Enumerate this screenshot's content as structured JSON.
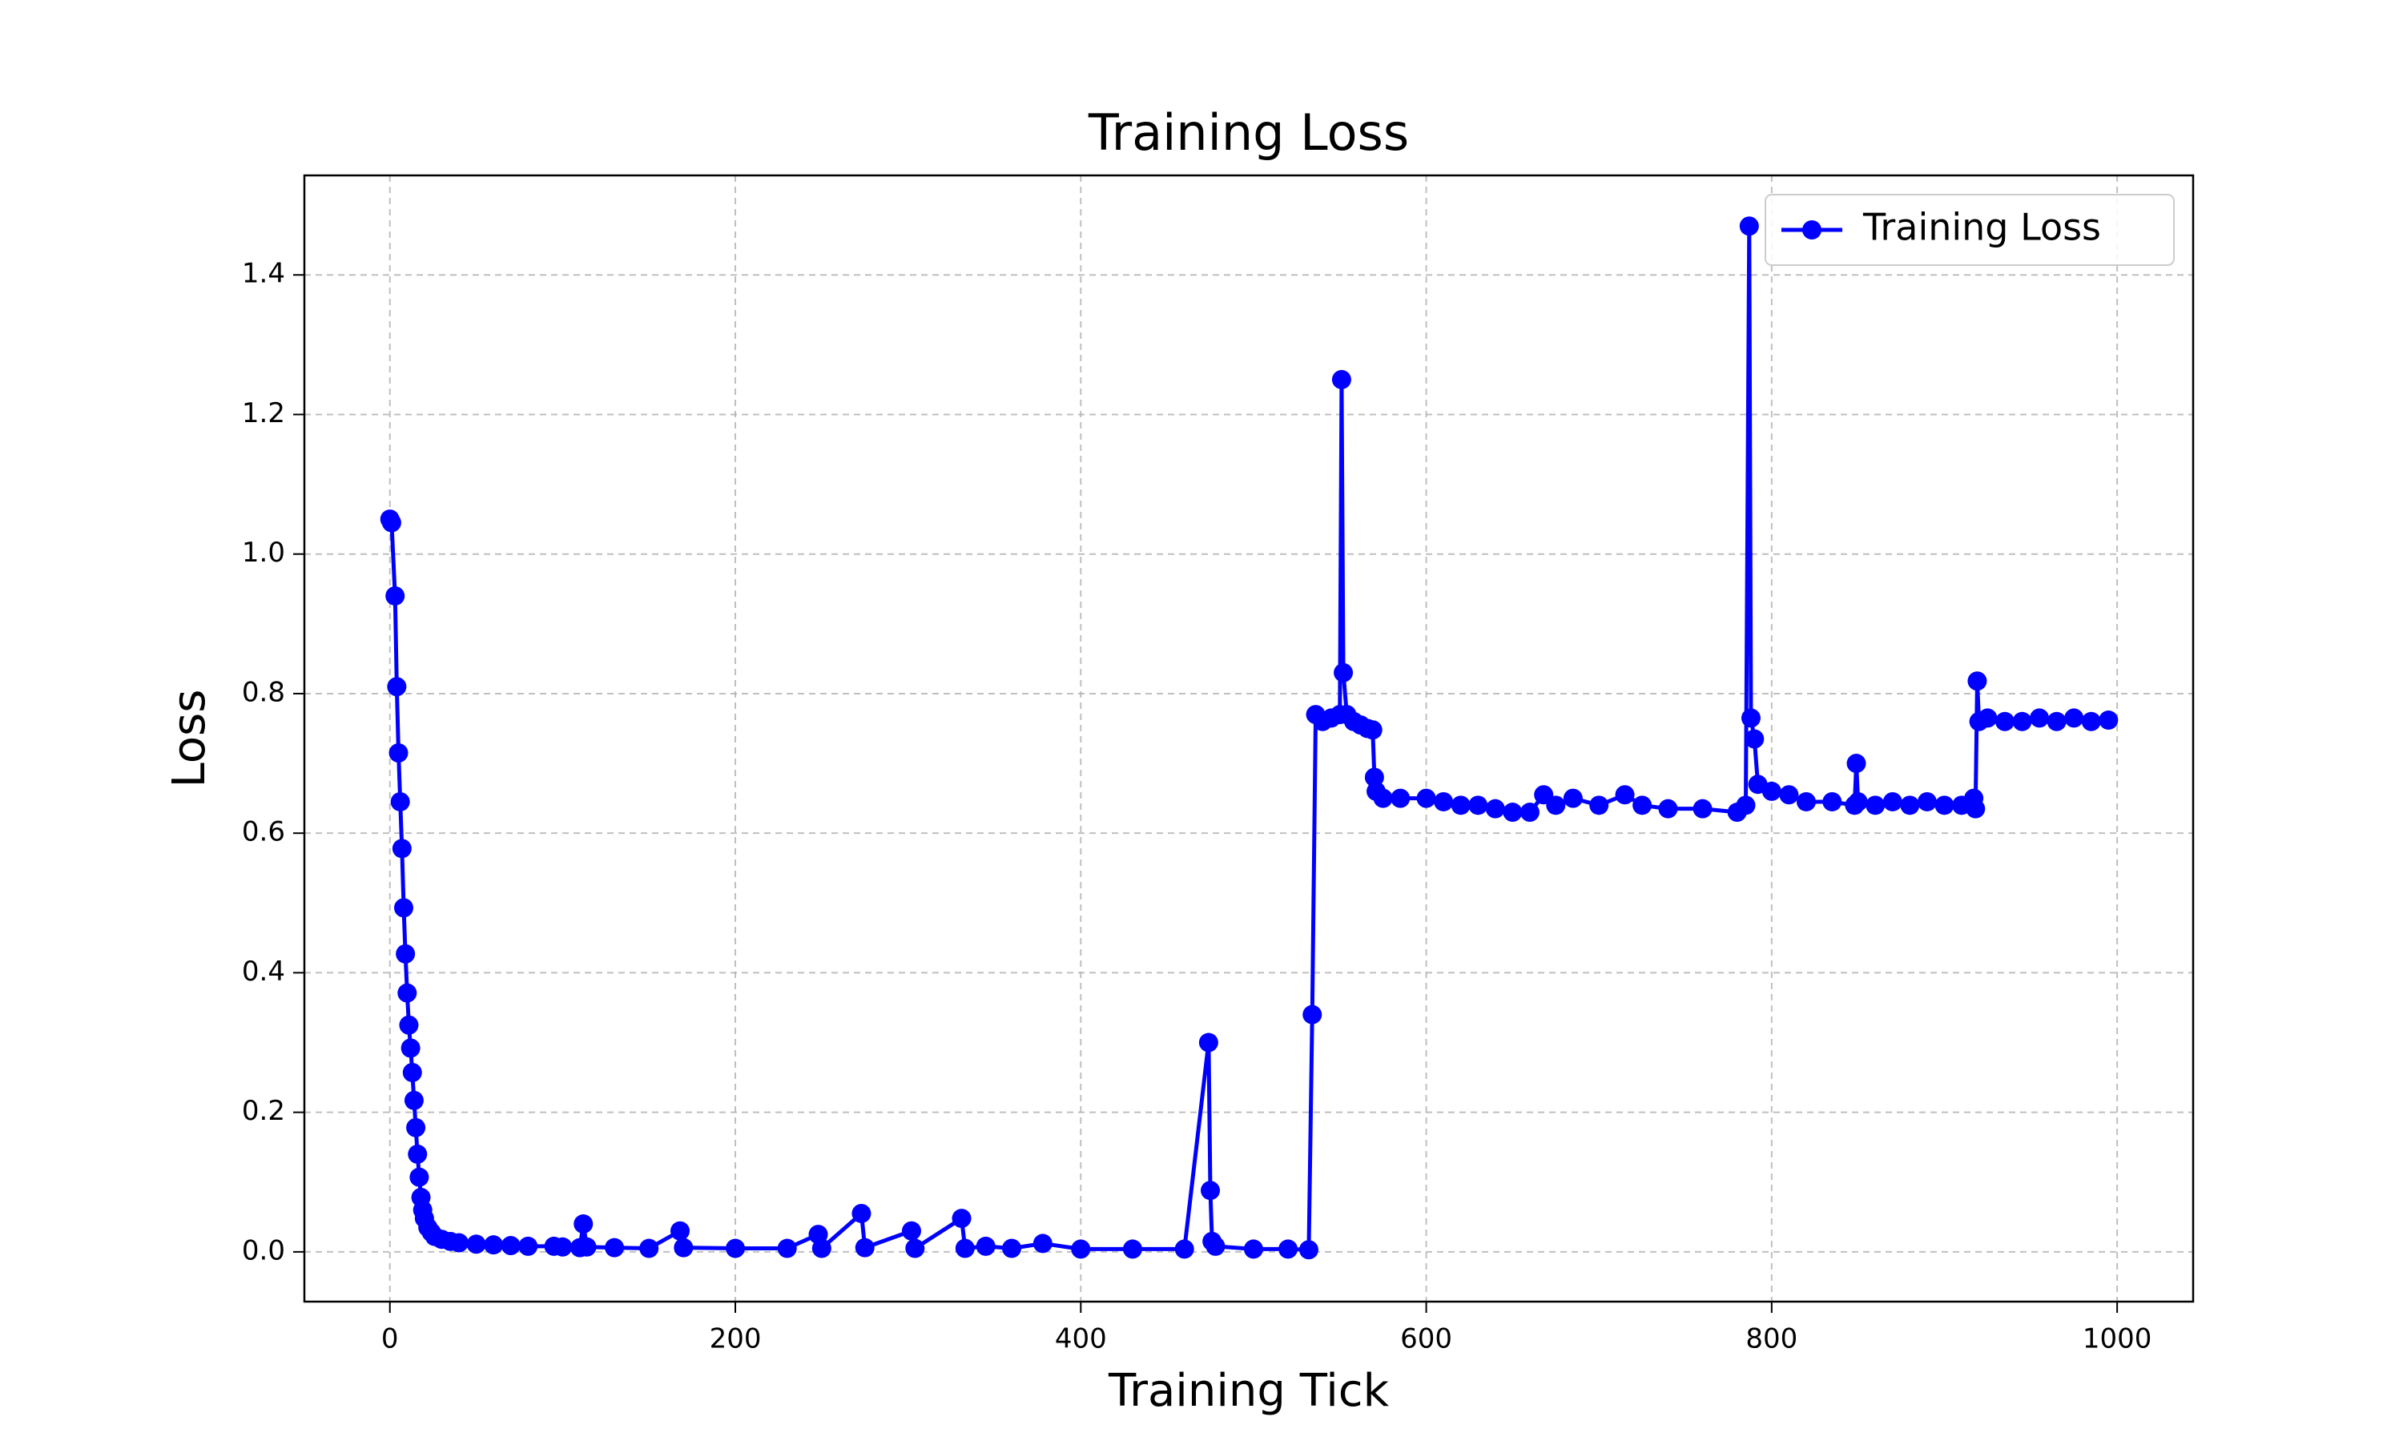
{
  "chart_data": {
    "type": "line",
    "title": "Training Loss",
    "x_label": "Training Tick",
    "y_label": "Loss",
    "x": [
      0,
      1,
      3,
      4,
      5,
      6,
      7,
      8,
      9,
      10,
      11,
      12,
      13,
      14,
      15,
      16,
      17,
      18,
      19,
      20,
      22,
      24,
      26,
      30,
      35,
      40,
      50,
      60,
      70,
      80,
      95,
      100,
      110,
      112,
      114,
      130,
      150,
      168,
      170,
      200,
      230,
      248,
      250,
      273,
      275,
      302,
      304,
      331,
      333,
      345,
      360,
      378,
      400,
      430,
      460,
      474,
      475,
      476,
      478,
      500,
      520,
      532,
      534,
      536,
      540,
      545,
      550,
      551,
      552,
      554,
      558,
      562,
      566,
      569,
      570,
      571,
      575,
      585,
      600,
      610,
      620,
      630,
      640,
      650,
      660,
      668,
      675,
      685,
      700,
      715,
      725,
      740,
      760,
      780,
      785,
      787,
      788,
      790,
      792,
      800,
      810,
      820,
      835,
      848,
      849,
      850,
      860,
      870,
      880,
      890,
      900,
      910,
      917,
      918,
      919,
      920,
      925,
      935,
      945,
      955,
      965,
      975,
      985,
      995
    ],
    "series": [
      {
        "name": "Training Loss",
        "color": "#0000ff",
        "values": [
          1.05,
          1.045,
          0.94,
          0.81,
          0.715,
          0.645,
          0.578,
          0.493,
          0.427,
          0.371,
          0.325,
          0.292,
          0.257,
          0.217,
          0.178,
          0.14,
          0.107,
          0.078,
          0.06,
          0.048,
          0.035,
          0.028,
          0.022,
          0.018,
          0.015,
          0.013,
          0.011,
          0.01,
          0.009,
          0.008,
          0.008,
          0.007,
          0.006,
          0.04,
          0.007,
          0.006,
          0.005,
          0.03,
          0.006,
          0.005,
          0.005,
          0.025,
          0.005,
          0.055,
          0.006,
          0.03,
          0.005,
          0.048,
          0.005,
          0.008,
          0.005,
          0.012,
          0.004,
          0.004,
          0.004,
          0.3,
          0.088,
          0.015,
          0.008,
          0.004,
          0.004,
          0.003,
          0.34,
          0.77,
          0.76,
          0.765,
          0.77,
          1.25,
          0.83,
          0.77,
          0.76,
          0.755,
          0.75,
          0.748,
          0.68,
          0.66,
          0.65,
          0.65,
          0.65,
          0.645,
          0.64,
          0.64,
          0.635,
          0.63,
          0.63,
          0.655,
          0.64,
          0.65,
          0.64,
          0.655,
          0.64,
          0.635,
          0.635,
          0.63,
          0.64,
          1.47,
          0.765,
          0.735,
          0.67,
          0.66,
          0.655,
          0.645,
          0.645,
          0.64,
          0.7,
          0.645,
          0.64,
          0.645,
          0.64,
          0.645,
          0.64,
          0.64,
          0.65,
          0.635,
          0.818,
          0.76,
          0.765,
          0.76,
          0.76,
          0.765,
          0.76,
          0.765,
          0.76,
          0.762
        ]
      }
    ],
    "xlim": [
      -49.5,
      1044
    ],
    "ylim": [
      -0.0713,
      1.5426
    ],
    "xticks": [
      0,
      200,
      400,
      600,
      800,
      1000
    ],
    "yticks": [
      {
        "value": 0,
        "label": "0.0"
      },
      0.2,
      0.4,
      0.6,
      0.8,
      {
        "value": 1,
        "label": "1.0"
      },
      1.2,
      1.4
    ],
    "grid": true,
    "legend": "upper right"
  }
}
